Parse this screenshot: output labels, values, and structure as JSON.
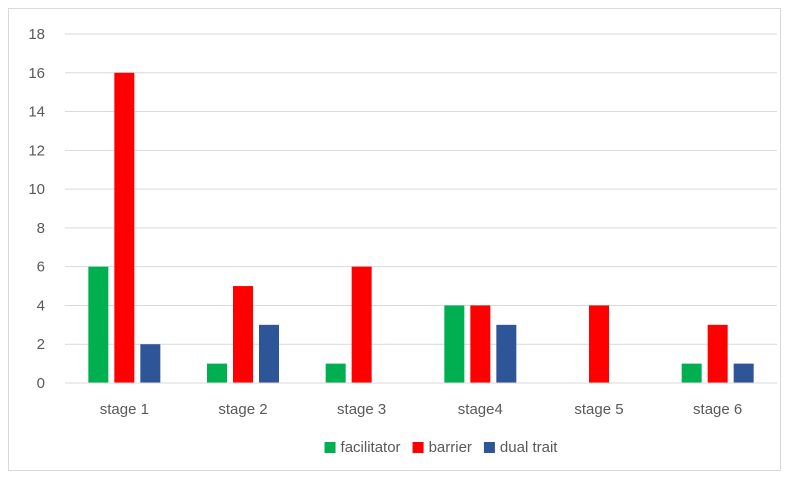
{
  "chart_data": {
    "type": "bar",
    "title": "",
    "xlabel": "",
    "ylabel": "",
    "categories": [
      "stage 1",
      "stage 2",
      "stage 3",
      "stage4",
      "stage 5",
      "stage 6"
    ],
    "series": [
      {
        "name": "facilitator",
        "color": "#00b050",
        "values": [
          6,
          1,
          1,
          4,
          0,
          1
        ]
      },
      {
        "name": "barrier",
        "color": "#ff0000",
        "values": [
          16,
          5,
          6,
          4,
          4,
          3
        ]
      },
      {
        "name": "dual trait",
        "color": "#2e5597",
        "values": [
          2,
          3,
          0,
          3,
          0,
          1
        ]
      }
    ],
    "ylim": [
      0,
      18
    ],
    "yticks": [
      0,
      2,
      4,
      6,
      8,
      10,
      12,
      14,
      16,
      18
    ],
    "grid": true,
    "legend": "bottom"
  }
}
